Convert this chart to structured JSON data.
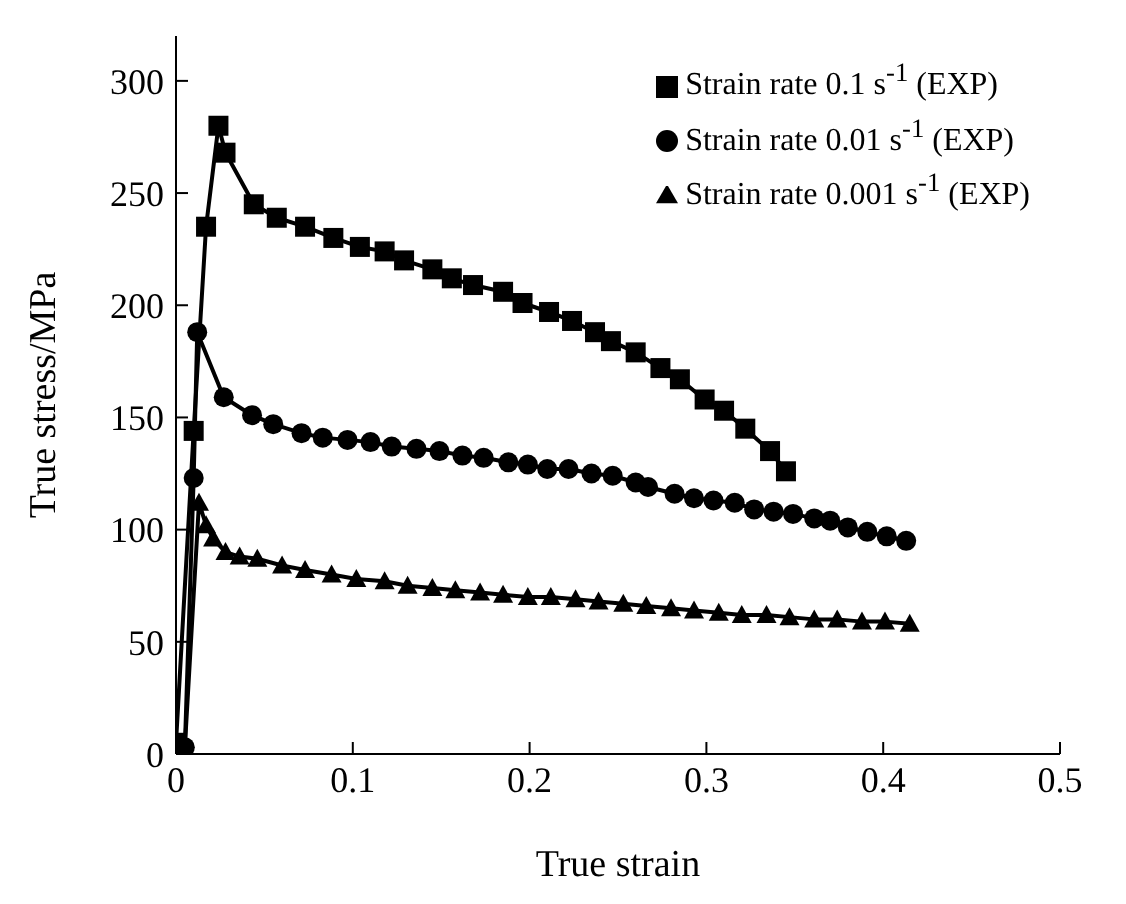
{
  "chart_data": {
    "type": "line",
    "xlabel": "True strain",
    "ylabel": "True stress/MPa",
    "xlim": [
      0,
      0.5
    ],
    "xticks": [
      0,
      0.1,
      0.2,
      0.3,
      0.4,
      0.5
    ],
    "ylim": [
      0,
      320
    ],
    "yticks": [
      0,
      50,
      100,
      150,
      200,
      250,
      300
    ],
    "grid": false,
    "legend": "top right",
    "line_style": "solid",
    "series": [
      {
        "name": "Strain rate 0.1 s$^{-1}$ (EXP)",
        "color": "#000000",
        "marker": "square",
        "x": [
          0,
          0.01,
          0.017,
          0.024,
          0.028,
          0.044,
          0.057,
          0.073,
          0.089,
          0.104,
          0.118,
          0.129,
          0.145,
          0.156,
          0.168,
          0.185,
          0.196,
          0.211,
          0.224,
          0.237,
          0.246,
          0.26,
          0.274,
          0.285,
          0.299,
          0.31,
          0.322,
          0.336,
          0.345
        ],
        "values": [
          5,
          144,
          235,
          280,
          268,
          245,
          239,
          235,
          230,
          226,
          224,
          220,
          216,
          212,
          209,
          206,
          201,
          197,
          193,
          188,
          184,
          179,
          172,
          167,
          158,
          153,
          145,
          135,
          126
        ]
      },
      {
        "name": "Strain rate 0.01 s$^{-1}$ (EXP)",
        "color": "#000000",
        "marker": "circle",
        "x": [
          0.005,
          0.01,
          0.012,
          0.027,
          0.043,
          0.055,
          0.071,
          0.083,
          0.097,
          0.11,
          0.122,
          0.136,
          0.149,
          0.162,
          0.174,
          0.188,
          0.199,
          0.21,
          0.222,
          0.235,
          0.247,
          0.26,
          0.267,
          0.282,
          0.293,
          0.304,
          0.316,
          0.327,
          0.338,
          0.349,
          0.361,
          0.37,
          0.38,
          0.391,
          0.402,
          0.413
        ],
        "values": [
          3,
          123,
          188,
          159,
          151,
          147,
          143,
          141,
          140,
          139,
          137,
          136,
          135,
          133,
          132,
          130,
          129,
          127,
          127,
          125,
          124,
          121,
          119,
          116,
          114,
          113,
          112,
          109,
          108,
          107,
          105,
          104,
          101,
          99,
          97,
          95
        ]
      },
      {
        "name": "Strain rate 0.001 s$^{-1}$ (EXP)",
        "color": "#000000",
        "marker": "triangle",
        "x": [
          0.005,
          0.013,
          0.017,
          0.021,
          0.028,
          0.036,
          0.046,
          0.06,
          0.073,
          0.088,
          0.102,
          0.118,
          0.131,
          0.145,
          0.158,
          0.172,
          0.185,
          0.199,
          0.212,
          0.226,
          0.239,
          0.253,
          0.266,
          0.28,
          0.293,
          0.307,
          0.32,
          0.334,
          0.347,
          0.361,
          0.374,
          0.388,
          0.401,
          0.415
        ],
        "values": [
          3,
          112,
          102,
          96,
          90,
          88,
          87,
          84,
          82,
          80,
          78,
          77,
          75,
          74,
          73,
          72,
          71,
          70,
          70,
          69,
          68,
          67,
          66,
          65,
          64,
          63,
          62,
          62,
          61,
          60,
          60,
          59,
          59,
          58
        ]
      }
    ]
  }
}
